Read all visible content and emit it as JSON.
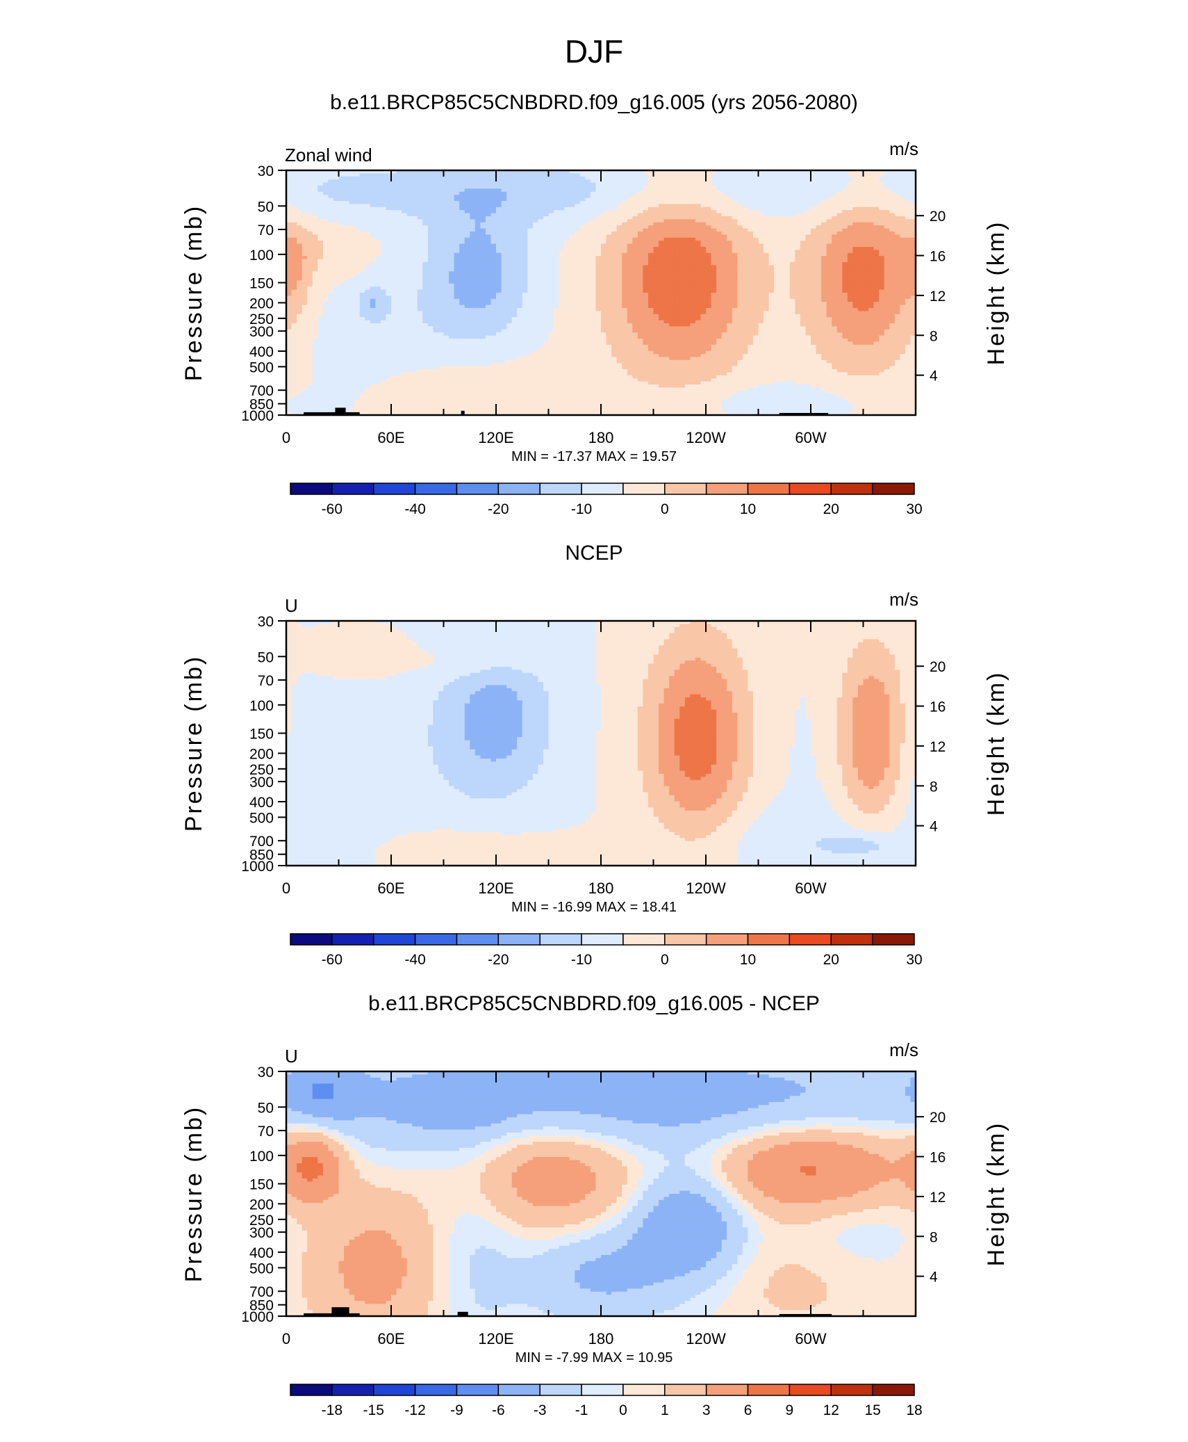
{
  "figure": {
    "title": "DJF"
  },
  "colors": {
    "panel_1_and_2_levels": [
      "#0b0b7e",
      "#1520b0",
      "#1f46d6",
      "#3a69e6",
      "#5e8ff0",
      "#8db3f7",
      "#bdd6fb",
      "#dfecfd",
      "#fde8d8",
      "#f9c6a7",
      "#f5a07a",
      "#ee7548",
      "#e84a22",
      "#c0300d",
      "#8a1806"
    ],
    "panel_3_levels": [
      "#0b0b7e",
      "#1520b0",
      "#1f46d6",
      "#3a69e6",
      "#5e8ff0",
      "#8db3f7",
      "#bdd6fb",
      "#dfecfd",
      "#fde8d8",
      "#f9c6a7",
      "#f5a07a",
      "#ee7548",
      "#e84a22",
      "#c0300d",
      "#8a1806"
    ],
    "topography": "#000000"
  },
  "chart_data": [
    {
      "type": "heatmap",
      "title": "b.e11.BRCP85C5CNBDRD.f09_g16.005 (yrs 2056-2080)",
      "left_label": "Zonal wind",
      "units": "m/s",
      "ylabel": "Pressure (mb)",
      "ylabel_right": "Height (km)",
      "x_ticks": [
        "0",
        "60E",
        "120E",
        "180",
        "120W",
        "60W"
      ],
      "y_ticks": [
        "30",
        "50",
        "70",
        "100",
        "150",
        "200",
        "250",
        "300",
        "400",
        "500",
        "700",
        "850",
        "1000"
      ],
      "y_ticks_right": [
        "20",
        "16",
        "12",
        "8",
        "4"
      ],
      "xlim": [
        0,
        360
      ],
      "ylim": [
        1000,
        30
      ],
      "min_max_text": "MIN = -17.37   MAX = 19.57",
      "colorbar_labels": [
        "-60",
        "-40",
        "-20",
        "-10",
        "0",
        "10",
        "20",
        "30"
      ],
      "field": {
        "background": 0,
        "features": [
          {
            "lon": 5,
            "p": 130,
            "value": 6,
            "r_lon": 10,
            "r_p": 0.18
          },
          {
            "lon": 20,
            "p": 90,
            "value": 4,
            "r_lon": 30,
            "r_p": 0.12
          },
          {
            "lon": 110,
            "p": 130,
            "value": -12,
            "r_lon": 30,
            "r_p": 0.28
          },
          {
            "lon": 50,
            "p": 200,
            "value": -8,
            "r_lon": 8,
            "r_p": 0.07
          },
          {
            "lon": 225,
            "p": 140,
            "value": 19,
            "r_lon": 42,
            "r_p": 0.42
          },
          {
            "lon": 330,
            "p": 140,
            "value": 17,
            "r_lon": 32,
            "r_p": 0.38
          },
          {
            "lon": 90,
            "p": 700,
            "value": 5,
            "r_lon": 60,
            "r_p": 0.18
          },
          {
            "lon": 20,
            "p": 40,
            "value": -4,
            "r_lon": 220,
            "r_p": 0.12
          },
          {
            "lon": 180,
            "p": 40,
            "value": -5,
            "r_lon": 160,
            "r_p": 0.15
          },
          {
            "lon": 60,
            "p": 400,
            "value": -4,
            "r_lon": 50,
            "r_p": 0.3
          },
          {
            "lon": 280,
            "p": 820,
            "value": -4,
            "r_lon": 70,
            "r_p": 0.08
          }
        ]
      },
      "topography": [
        {
          "lon_start": 10,
          "lon_end": 42,
          "p_top": 960
        },
        {
          "lon_start": 28,
          "lon_end": 34,
          "p_top": 900
        },
        {
          "lon_start": 100,
          "lon_end": 102,
          "p_top": 940
        },
        {
          "lon_start": 282,
          "lon_end": 310,
          "p_top": 970
        }
      ]
    },
    {
      "type": "heatmap",
      "title": "NCEP",
      "left_label": "U",
      "units": "m/s",
      "ylabel": "Pressure (mb)",
      "ylabel_right": "Height (km)",
      "x_ticks": [
        "0",
        "60E",
        "120E",
        "180",
        "120W",
        "60W"
      ],
      "y_ticks": [
        "30",
        "50",
        "70",
        "100",
        "150",
        "200",
        "250",
        "300",
        "400",
        "500",
        "700",
        "850",
        "1000"
      ],
      "y_ticks_right": [
        "20",
        "16",
        "12",
        "8",
        "4"
      ],
      "xlim": [
        0,
        360
      ],
      "ylim": [
        1000,
        30
      ],
      "min_max_text": "MIN = -16.99   MAX = 18.41",
      "colorbar_labels": [
        "-60",
        "-40",
        "-20",
        "-10",
        "0",
        "10",
        "20",
        "30"
      ],
      "field": {
        "background": 0,
        "features": [
          {
            "lon": 120,
            "p": 120,
            "value": -12,
            "r_lon": 32,
            "r_p": 0.32
          },
          {
            "lon": 235,
            "p": 160,
            "value": 18,
            "r_lon": 30,
            "r_p": 0.42
          },
          {
            "lon": 335,
            "p": 160,
            "value": 17,
            "r_lon": 20,
            "r_p": 0.38
          },
          {
            "lon": 40,
            "p": 50,
            "value": 4,
            "r_lon": 30,
            "r_p": 0.1
          },
          {
            "lon": 110,
            "p": 55,
            "value": 4,
            "r_lon": 35,
            "r_p": 0.07
          },
          {
            "lon": 90,
            "p": 800,
            "value": 4,
            "r_lon": 60,
            "r_p": 0.12
          },
          {
            "lon": 30,
            "p": 300,
            "value": -4,
            "r_lon": 80,
            "r_p": 0.45
          },
          {
            "lon": 330,
            "p": 750,
            "value": -7,
            "r_lon": 18,
            "r_p": 0.05
          },
          {
            "lon": 290,
            "p": 700,
            "value": -4,
            "r_lon": 60,
            "r_p": 0.14
          }
        ]
      },
      "topography": []
    },
    {
      "type": "heatmap",
      "title": "b.e11.BRCP85C5CNBDRD.f09_g16.005 - NCEP",
      "left_label": "U",
      "units": "m/s",
      "ylabel": "Pressure (mb)",
      "ylabel_right": "Height (km)",
      "x_ticks": [
        "0",
        "60E",
        "120E",
        "180",
        "120W",
        "60W"
      ],
      "y_ticks": [
        "30",
        "50",
        "70",
        "100",
        "150",
        "200",
        "250",
        "300",
        "400",
        "500",
        "700",
        "850",
        "1000"
      ],
      "y_ticks_right": [
        "20",
        "16",
        "12",
        "8",
        "4"
      ],
      "xlim": [
        0,
        360
      ],
      "ylim": [
        1000,
        30
      ],
      "min_max_text": "MIN = -7.99   MAX = 10.95",
      "colorbar_labels": [
        "-18",
        "-15",
        "-12",
        "-9",
        "-6",
        "-3",
        "-1",
        "0",
        "1",
        "3",
        "6",
        "9",
        "12",
        "15",
        "18"
      ],
      "field": {
        "background": 0,
        "features": [
          {
            "lon": 180,
            "p": 45,
            "value": -4.5,
            "r_lon": 220,
            "r_p": 0.22
          },
          {
            "lon": 20,
            "p": 40,
            "value": -4,
            "r_lon": 20,
            "r_p": 0.12
          },
          {
            "lon": 95,
            "p": 50,
            "value": -2,
            "r_lon": 25,
            "r_p": 0.08
          },
          {
            "lon": 15,
            "p": 115,
            "value": 6,
            "r_lon": 18,
            "r_p": 0.15
          },
          {
            "lon": 150,
            "p": 130,
            "value": 5,
            "r_lon": 50,
            "r_p": 0.22
          },
          {
            "lon": 300,
            "p": 120,
            "value": 7,
            "r_lon": 55,
            "r_p": 0.18
          },
          {
            "lon": 230,
            "p": 270,
            "value": -6,
            "r_lon": 32,
            "r_p": 0.22
          },
          {
            "lon": 180,
            "p": 550,
            "value": -3.5,
            "r_lon": 40,
            "r_p": 0.18
          },
          {
            "lon": 50,
            "p": 500,
            "value": 4,
            "r_lon": 35,
            "r_p": 0.28
          },
          {
            "lon": 110,
            "p": 300,
            "value": -1.5,
            "r_lon": 25,
            "r_p": 0.5
          },
          {
            "lon": 320,
            "p": 260,
            "value": -1.5,
            "r_lon": 40,
            "r_p": 0.2
          },
          {
            "lon": 290,
            "p": 550,
            "value": 1.5,
            "r_lon": 50,
            "r_p": 0.25
          }
        ]
      },
      "topography": [
        {
          "lon_start": 10,
          "lon_end": 42,
          "p_top": 960
        },
        {
          "lon_start": 26,
          "lon_end": 36,
          "p_top": 880
        },
        {
          "lon_start": 98,
          "lon_end": 104,
          "p_top": 940
        },
        {
          "lon_start": 282,
          "lon_end": 312,
          "p_top": 970
        }
      ]
    }
  ]
}
